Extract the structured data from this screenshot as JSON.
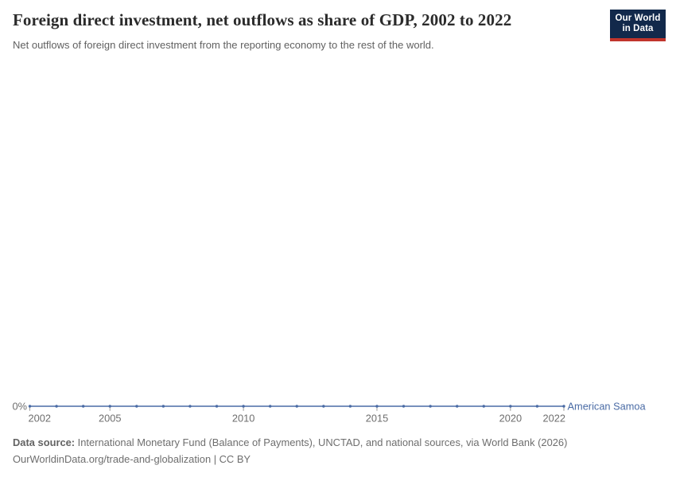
{
  "header": {
    "title": "Foreign direct investment, net outflows as share of GDP, 2002 to 2022",
    "subtitle": "Net outflows of foreign direct investment from the reporting economy to the rest of the world.",
    "logo": {
      "line1": "Our World",
      "line2": "in Data",
      "bg_color": "#12294b",
      "accent_color": "#c0352c",
      "text_color": "#ffffff"
    }
  },
  "chart_data": {
    "type": "line",
    "title": "Foreign direct investment, net outflows as share of GDP, 2002 to 2022",
    "x": [
      2002,
      2003,
      2004,
      2005,
      2006,
      2007,
      2008,
      2009,
      2010,
      2011,
      2012,
      2013,
      2014,
      2015,
      2016,
      2017,
      2018,
      2019,
      2020,
      2021,
      2022
    ],
    "series": [
      {
        "name": "American Samoa",
        "color": "#4a6ba5",
        "unit": "%",
        "values": [
          0,
          0,
          0,
          0,
          0,
          0,
          0,
          0,
          0,
          0,
          0,
          0,
          0,
          0,
          0,
          0,
          0,
          0,
          0,
          0,
          0
        ]
      }
    ],
    "x_ticks": [
      2002,
      2005,
      2010,
      2015,
      2020,
      2022
    ],
    "y_axis": {
      "visible_tick_labels": [
        "0%"
      ],
      "min": 0
    },
    "ylim": [
      0,
      0
    ],
    "grid": false,
    "legend_position": "right-of-line-end",
    "axis_text_color": "#6e6e6e",
    "tick_color": "#9a9a9a"
  },
  "footer": {
    "source_label": "Data source:",
    "source_text": " International Monetary Fund (Balance of Payments), UNCTAD, and national sources, via World Bank (2026)",
    "attribution": "OurWorldinData.org/trade-and-globalization | CC BY"
  }
}
